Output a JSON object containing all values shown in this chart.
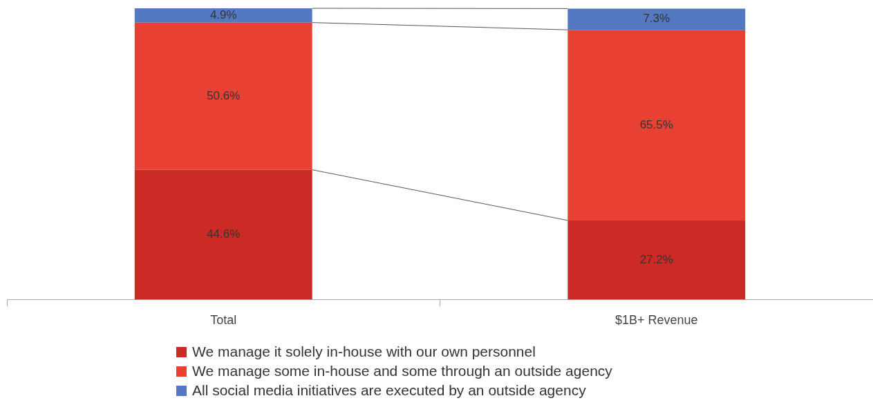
{
  "chart_data": {
    "type": "bar",
    "stacked": true,
    "legend": "bottom",
    "categories": [
      "Total",
      "$1B+ Revenue"
    ],
    "series": [
      {
        "name": "We manage it solely in-house with our own personnel",
        "color": "#cc2a25",
        "values": [
          44.6,
          27.2
        ],
        "value_labels": [
          "44.6%",
          "27.2%"
        ]
      },
      {
        "name": "We manage some in-house and some through an outside agency",
        "color": "#e94034",
        "values": [
          50.6,
          65.5
        ],
        "value_labels": [
          "50.6%",
          "65.5%"
        ]
      },
      {
        "name": "All social media initiatives are executed by an outside agency",
        "color": "#5479c0",
        "values": [
          4.9,
          7.3
        ],
        "value_labels": [
          "4.9%",
          "7.3%"
        ]
      }
    ]
  }
}
